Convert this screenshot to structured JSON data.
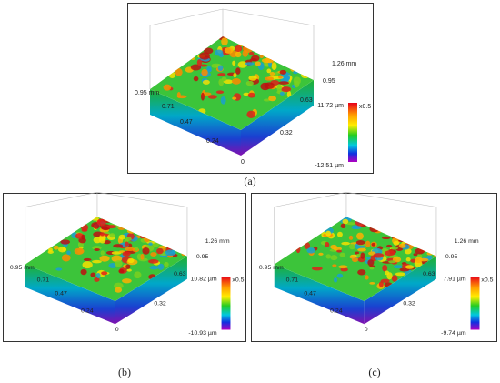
{
  "panels": [
    {
      "label": "(a)",
      "depth_ticks": [
        "0.95 mm",
        "0.71",
        "0.47",
        "0.24"
      ],
      "width_ticks": [
        "0",
        "0.32",
        "0.63",
        "0.95",
        "1.26 mm"
      ],
      "colorbar": {
        "max": "11.72 µm",
        "min": "-12.51 µm",
        "scale": "x0.5"
      }
    },
    {
      "label": "(b)",
      "depth_ticks": [
        "0.95 mm",
        "0.71",
        "0.47",
        "0.24"
      ],
      "width_ticks": [
        "0",
        "0.32",
        "0.63",
        "0.95",
        "1.26 mm"
      ],
      "colorbar": {
        "max": "10.82 µm",
        "min": "-10.93 µm",
        "scale": "x0.5"
      }
    },
    {
      "label": "(c)",
      "depth_ticks": [
        "0.95 mm",
        "0.71",
        "0.47",
        "0.24"
      ],
      "width_ticks": [
        "0",
        "0.32",
        "0.63",
        "0.95",
        "1.26 mm"
      ],
      "colorbar": {
        "max": "7.91 µm",
        "min": "-9.74 µm",
        "scale": "x0.5"
      }
    }
  ]
}
